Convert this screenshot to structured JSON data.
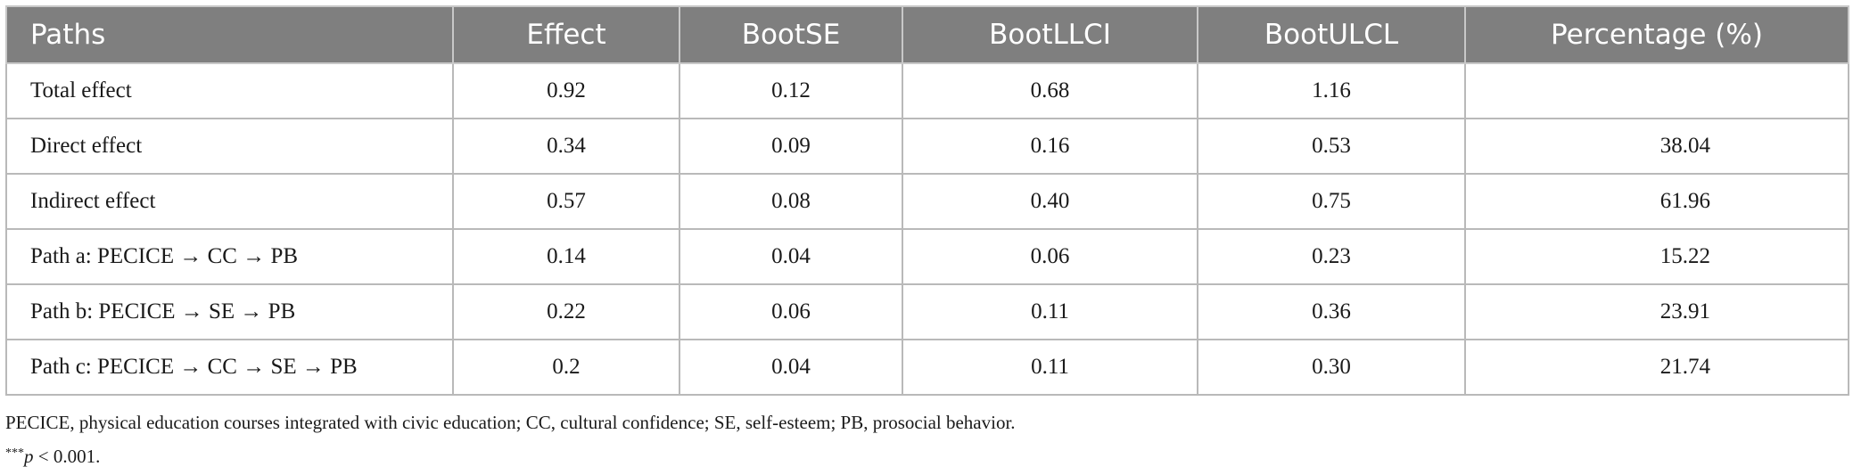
{
  "table": {
    "headers": [
      "Paths",
      "Effect",
      "BootSE",
      "BootLLCI",
      "BootULCL",
      "Percentage (%)"
    ],
    "rows": [
      {
        "path": "Total effect",
        "effect": "0.92",
        "bootse": "0.12",
        "bootllci": "0.68",
        "bootulcl": "1.16",
        "percentage": ""
      },
      {
        "path": "Direct effect",
        "effect": "0.34",
        "bootse": "0.09",
        "bootllci": "0.16",
        "bootulcl": "0.53",
        "percentage": "38.04"
      },
      {
        "path": "Indirect effect",
        "effect": "0.57",
        "bootse": "0.08",
        "bootllci": "0.40",
        "bootulcl": "0.75",
        "percentage": "61.96"
      },
      {
        "path": "Path a: PECICE → CC → PB",
        "effect": "0.14",
        "bootse": "0.04",
        "bootllci": "0.06",
        "bootulcl": "0.23",
        "percentage": "15.22"
      },
      {
        "path": "Path b: PECICE → SE → PB",
        "effect": "0.22",
        "bootse": "0.06",
        "bootllci": "0.11",
        "bootulcl": "0.36",
        "percentage": "23.91"
      },
      {
        "path": "Path c: PECICE → CC → SE → PB",
        "effect": "0.2",
        "bootse": "0.04",
        "bootllci": "0.11",
        "bootulcl": "0.30",
        "percentage": "21.74"
      }
    ]
  },
  "footnotes": {
    "abbreviations": "PECICE, physical education courses integrated with civic education; CC, cultural confidence; SE, self-esteem; PB, prosocial behavior.",
    "significance_sup": "***",
    "significance_p": "p",
    "significance_rest": " < 0.001."
  }
}
